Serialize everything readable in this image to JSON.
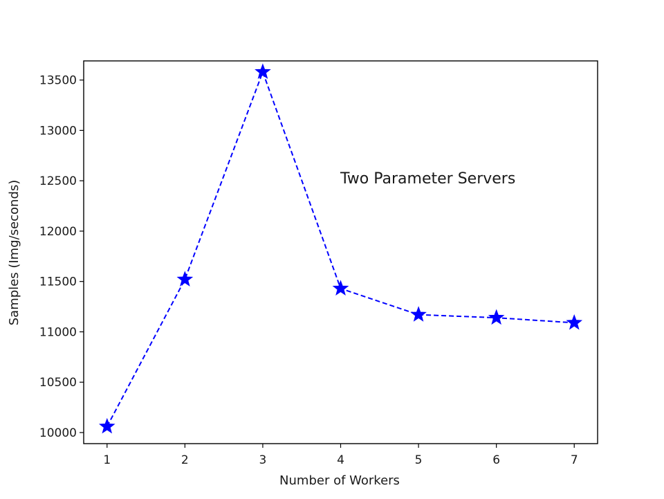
{
  "chart_data": {
    "type": "line",
    "title": "",
    "xlabel": "Number of Workers",
    "ylabel": "Samples (Img/seconds)",
    "x": [
      1,
      2,
      3,
      4,
      5,
      6,
      7
    ],
    "series": [
      {
        "values": [
          10060,
          11520,
          13580,
          11430,
          11170,
          11140,
          11090
        ],
        "color": "#0000ff",
        "line_style": "dashed",
        "marker": "star"
      }
    ],
    "annotation": "Two Parameter Servers",
    "x_ticks": [
      1,
      2,
      3,
      4,
      5,
      6,
      7
    ],
    "y_ticks": [
      10000,
      10500,
      11000,
      11500,
      12000,
      12500,
      13000,
      13500
    ],
    "xlim": [
      0.7,
      7.3
    ],
    "ylim": [
      9890,
      13690
    ],
    "grid": false,
    "legend": "none"
  }
}
